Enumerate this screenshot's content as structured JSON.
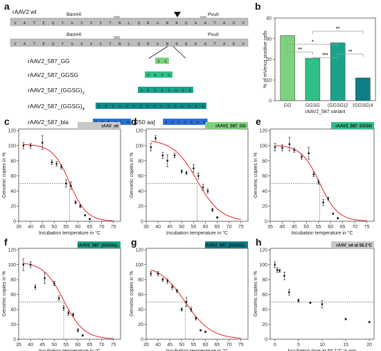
{
  "panel_labels": [
    "a",
    "b",
    "c",
    "d",
    "e",
    "f",
    "g",
    "h"
  ],
  "panel_a": {
    "wt_name": "rAAV2 wt",
    "wt_sequence": [
      "V",
      "A",
      "T",
      "E",
      "Q",
      "Y",
      "G",
      "S",
      "V",
      "S",
      "T",
      "N",
      "L",
      "Q",
      "R",
      "G",
      "N",
      "R",
      "Q",
      "A",
      "A",
      "T",
      "A",
      "D",
      "V"
    ],
    "bamhi": "BamHI",
    "pvuii": "PvuII",
    "num_580": "580",
    "num_590": "590",
    "lower_sequence": [
      "V",
      "A",
      "T",
      "E",
      "Q",
      "Y",
      "G",
      "S",
      "V",
      "S",
      "T",
      "N",
      "L",
      "Q",
      "R",
      "G",
      "N",
      "R",
      "Q",
      "A",
      "A",
      "T",
      "A",
      "D",
      "V"
    ],
    "constructs": [
      {
        "name": "rAAV2_587_GG",
        "residues": [
          "G",
          "G"
        ],
        "color": "#7ed27e"
      },
      {
        "name": "rAAV2_587_GGSG",
        "residues": [
          "G",
          "G",
          "S",
          "G"
        ],
        "color": "#2fbf86"
      },
      {
        "name": "rAAV2_587_(GGSG)",
        "sub": "2",
        "residues": [
          "G",
          "G",
          "S",
          "G",
          "G",
          "G",
          "S",
          "G"
        ],
        "color": "#1aa389"
      },
      {
        "name": "rAAV2_587_(GGSG)",
        "sub": "4",
        "residues": [
          "G",
          "G",
          "S",
          "G",
          "G",
          "G",
          "S",
          "G",
          "G",
          "G",
          "S",
          "G",
          "G",
          "G",
          "S",
          "G"
        ],
        "color": "#0e8a8a"
      },
      {
        "name": "rAAV2_587_bla",
        "left": [
          "H",
          "P",
          "E",
          "T",
          "L",
          "A"
        ],
        "mid": "[250 aa]",
        "right": [
          "A",
          "S",
          "L",
          "I",
          "K",
          "H",
          "W"
        ],
        "color": "#2a6fd6"
      }
    ]
  },
  "chart_data": [
    {
      "panel": "b",
      "type": "bar",
      "categories": [
        "GG",
        "GGSG",
        "(GGSG)2",
        "(GGSG)4"
      ],
      "values": [
        31.5,
        20.5,
        28.0,
        11.0
      ],
      "colors": [
        "#7ed27e",
        "#2fbf86",
        "#1aa389",
        "#0e7f86"
      ],
      "ylabel": "% of mVenus positive cells",
      "xlabel": "rAAV2_587 variant",
      "ylim": [
        0,
        40
      ],
      "yticks": [
        0,
        10,
        20,
        30,
        40
      ],
      "significance": [
        {
          "from": 0,
          "to": 1,
          "label": "**"
        },
        {
          "from": 1,
          "to": 2,
          "label": "***"
        },
        {
          "from": 0,
          "to": 2,
          "label": "*"
        },
        {
          "from": 2,
          "to": 3,
          "label": "**"
        },
        {
          "from": 1,
          "to": 3,
          "label": "**"
        }
      ]
    },
    {
      "panel": "c",
      "type": "scatter",
      "tag": "rAAV_wt",
      "tag_color": "#c8c8c8",
      "xlabel": "Incubation temperature in °C",
      "ylabel": "Genomic copies in %",
      "xlim": [
        35,
        78
      ],
      "ylim": [
        0,
        122
      ],
      "xticks": [
        35,
        40,
        45,
        50,
        55,
        60,
        65,
        70,
        75
      ],
      "yticks": [
        0,
        20,
        40,
        60,
        80,
        100,
        120
      ],
      "x": [
        37,
        40,
        45,
        49,
        51,
        53,
        55,
        57,
        59,
        61,
        63,
        65
      ],
      "y": [
        100,
        100,
        104,
        78,
        76,
        72,
        50,
        47,
        25,
        20,
        8,
        3
      ],
      "err": [
        4,
        3,
        9,
        3,
        3,
        3,
        5,
        5,
        2,
        2,
        1,
        1
      ],
      "fit": {
        "top": 102,
        "bottom": 0,
        "tm": 56.5,
        "slope": 3.6
      },
      "half_line_x": 56.5
    },
    {
      "panel": "d",
      "type": "scatter",
      "tag": "rAAV2_587_GG",
      "tag_color": "#7ed27e",
      "xlabel": "Incubation temperature in °C",
      "ylabel": "Genomic copies in %",
      "xlim": [
        35,
        78
      ],
      "ylim": [
        0,
        122
      ],
      "xticks": [
        35,
        40,
        45,
        50,
        55,
        60,
        65,
        70,
        75
      ],
      "yticks": [
        0,
        20,
        40,
        60,
        80,
        100,
        120
      ],
      "x": [
        37,
        39,
        42,
        44,
        47,
        50,
        52,
        55,
        57,
        59,
        61,
        63,
        65
      ],
      "y": [
        98,
        110,
        87,
        80,
        87,
        66,
        64,
        70,
        60,
        45,
        40,
        15,
        5
      ],
      "err": [
        5,
        3,
        4,
        8,
        3,
        2,
        2,
        5,
        4,
        4,
        3,
        2,
        1
      ],
      "fit": {
        "top": 108,
        "bottom": 0,
        "tm": 56.5,
        "slope": 5.0
      },
      "half_line_x": 56.5
    },
    {
      "panel": "e",
      "type": "scatter",
      "tag": "rAAV2_587_GGSG",
      "tag_color": "#2fbf86",
      "xlabel": "Incubation temperature in °C",
      "ylabel": "Genomic copies in %",
      "xlim": [
        35,
        78
      ],
      "ylim": [
        0,
        122
      ],
      "xticks": [
        35,
        40,
        45,
        50,
        55,
        60,
        65,
        70,
        75
      ],
      "yticks": [
        0,
        20,
        40,
        60,
        80,
        100,
        120
      ],
      "x": [
        37,
        40,
        43,
        45,
        48,
        51,
        53,
        55,
        57,
        59,
        61,
        63
      ],
      "y": [
        98,
        97,
        102,
        94,
        85,
        90,
        62,
        52,
        25,
        30,
        10,
        4
      ],
      "err": [
        5,
        4,
        9,
        3,
        3,
        8,
        3,
        3,
        4,
        2,
        1,
        1
      ],
      "fit": {
        "top": 101,
        "bottom": 0,
        "tm": 55.5,
        "slope": 3.8
      },
      "half_line_x": 55.5
    },
    {
      "panel": "f",
      "type": "scatter",
      "tag": "rAAV2_587_(GGSG)₂",
      "tag_color": "#1aa389",
      "xlabel": "Incubation temperature in °C",
      "ylabel": "Genomic copies in %",
      "xlim": [
        35,
        78
      ],
      "ylim": [
        0,
        122
      ],
      "xticks": [
        35,
        40,
        45,
        50,
        55,
        60,
        65,
        70,
        75
      ],
      "yticks": [
        0,
        20,
        40,
        60,
        80,
        100,
        120
      ],
      "x": [
        37,
        40,
        42,
        46,
        50,
        52,
        54,
        56,
        58,
        60,
        62
      ],
      "y": [
        100,
        100,
        70,
        82,
        75,
        55,
        42,
        35,
        33,
        12,
        5
      ],
      "err": [
        8,
        4,
        3,
        7,
        3,
        3,
        3,
        3,
        2,
        2,
        1
      ],
      "fit": {
        "top": 104,
        "bottom": 0,
        "tm": 54.0,
        "slope": 4.3
      },
      "half_line_x": 54.0
    },
    {
      "panel": "g",
      "type": "scatter",
      "tag": "rAAV2_587_(GGSG)₄",
      "tag_color": "#0e7f86",
      "xlabel": "Incubation temperature in °C",
      "ylabel": "Genomic copies in %",
      "xlim": [
        35,
        78
      ],
      "ylim": [
        0,
        122
      ],
      "xticks": [
        35,
        40,
        45,
        50,
        55,
        60,
        65,
        70,
        75
      ],
      "yticks": [
        0,
        20,
        40,
        60,
        80,
        100,
        120
      ],
      "x": [
        37,
        40,
        42,
        44,
        46,
        48,
        50,
        52,
        54,
        56,
        58,
        60
      ],
      "y": [
        88,
        88,
        80,
        78,
        70,
        65,
        40,
        50,
        40,
        28,
        12,
        10
      ],
      "err": [
        3,
        3,
        2,
        3,
        3,
        2,
        2,
        6,
        3,
        2,
        1,
        1
      ],
      "fit": {
        "top": 100,
        "bottom": 0,
        "tm": 51.5,
        "slope": 5.5
      },
      "half_line_x": 51.5
    },
    {
      "panel": "h",
      "type": "scatter",
      "tag": "rAAV_wt at 56.1°C",
      "tag_color": "#c8c8c8",
      "xlabel": "Incubation time at 56.1°C in min",
      "ylabel": "Genomic copies in %",
      "xlim": [
        -1,
        21
      ],
      "ylim": [
        0,
        122
      ],
      "xticks": [
        0,
        5,
        10,
        15,
        20
      ],
      "yticks": [
        0,
        20,
        40,
        60,
        80,
        100,
        120
      ],
      "x": [
        0,
        0.5,
        1,
        2,
        3,
        5,
        7.5,
        10,
        15,
        20
      ],
      "y": [
        100,
        93,
        92,
        85,
        63,
        52,
        49,
        47,
        27,
        23
      ],
      "err": [
        4,
        3,
        2,
        5,
        4,
        2,
        1,
        5,
        1,
        1
      ],
      "half_line_y": 50
    }
  ]
}
